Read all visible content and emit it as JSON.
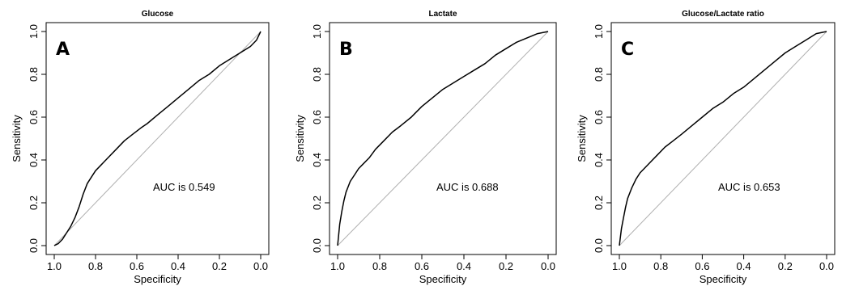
{
  "chart_data": [
    {
      "type": "line",
      "panel": "A",
      "title": "Glucose",
      "xlabel": "Specificity",
      "ylabel": "Sensitivity",
      "xlim": [
        1.0,
        0.0
      ],
      "ylim": [
        0.0,
        1.0
      ],
      "x_ticks": [
        "1.0",
        "0.8",
        "0.6",
        "0.4",
        "0.2",
        "0.0"
      ],
      "y_ticks": [
        "0.0",
        "0.2",
        "0.4",
        "0.6",
        "0.8",
        "1.0"
      ],
      "annotation": "AUC is 0.549",
      "reference_line": true,
      "series": [
        {
          "x": [
            1.0,
            0.98,
            0.96,
            0.94,
            0.92,
            0.9,
            0.88,
            0.86,
            0.84,
            0.82,
            0.8,
            0.77,
            0.74,
            0.7,
            0.66,
            0.62,
            0.58,
            0.55,
            0.5,
            0.45,
            0.4,
            0.35,
            0.3,
            0.25,
            0.2,
            0.15,
            0.1,
            0.05,
            0.02,
            0.0
          ],
          "y": [
            0.0,
            0.01,
            0.03,
            0.06,
            0.09,
            0.13,
            0.18,
            0.24,
            0.29,
            0.32,
            0.35,
            0.38,
            0.41,
            0.45,
            0.49,
            0.52,
            0.55,
            0.57,
            0.61,
            0.65,
            0.69,
            0.73,
            0.77,
            0.8,
            0.84,
            0.87,
            0.9,
            0.93,
            0.96,
            1.0
          ]
        }
      ]
    },
    {
      "type": "line",
      "panel": "B",
      "title": "Lactate",
      "xlabel": "Specificity",
      "ylabel": "Sensitivity",
      "xlim": [
        1.0,
        0.0
      ],
      "ylim": [
        0.0,
        1.0
      ],
      "x_ticks": [
        "1.0",
        "0.8",
        "0.6",
        "0.4",
        "0.2",
        "0.0"
      ],
      "y_ticks": [
        "0.0",
        "0.2",
        "0.4",
        "0.6",
        "0.8",
        "1.0"
      ],
      "annotation": "AUC is 0.688",
      "reference_line": true,
      "series": [
        {
          "x": [
            1.0,
            0.995,
            0.99,
            0.98,
            0.97,
            0.96,
            0.94,
            0.92,
            0.9,
            0.88,
            0.85,
            0.82,
            0.78,
            0.74,
            0.7,
            0.65,
            0.6,
            0.55,
            0.5,
            0.45,
            0.4,
            0.35,
            0.3,
            0.25,
            0.2,
            0.15,
            0.1,
            0.05,
            0.0
          ],
          "y": [
            0.0,
            0.05,
            0.1,
            0.16,
            0.21,
            0.25,
            0.3,
            0.33,
            0.36,
            0.38,
            0.41,
            0.45,
            0.49,
            0.53,
            0.56,
            0.6,
            0.65,
            0.69,
            0.73,
            0.76,
            0.79,
            0.82,
            0.85,
            0.89,
            0.92,
            0.95,
            0.97,
            0.99,
            1.0
          ]
        }
      ]
    },
    {
      "type": "line",
      "panel": "C",
      "title": "Glucose/Lactate ratio",
      "xlabel": "Specificity",
      "ylabel": "Sensitivity",
      "xlim": [
        1.0,
        0.0
      ],
      "ylim": [
        0.0,
        1.0
      ],
      "x_ticks": [
        "1.0",
        "0.8",
        "0.6",
        "0.4",
        "0.2",
        "0.0"
      ],
      "y_ticks": [
        "0.0",
        "0.2",
        "0.4",
        "0.6",
        "0.8",
        "1.0"
      ],
      "annotation": "AUC is 0.653",
      "reference_line": true,
      "series": [
        {
          "x": [
            1.0,
            0.995,
            0.99,
            0.98,
            0.97,
            0.96,
            0.94,
            0.92,
            0.9,
            0.88,
            0.85,
            0.82,
            0.78,
            0.74,
            0.7,
            0.65,
            0.6,
            0.55,
            0.5,
            0.45,
            0.4,
            0.35,
            0.3,
            0.25,
            0.2,
            0.15,
            0.1,
            0.05,
            0.0
          ],
          "y": [
            0.0,
            0.04,
            0.08,
            0.13,
            0.18,
            0.22,
            0.27,
            0.31,
            0.34,
            0.36,
            0.39,
            0.42,
            0.46,
            0.49,
            0.52,
            0.56,
            0.6,
            0.64,
            0.67,
            0.71,
            0.74,
            0.78,
            0.82,
            0.86,
            0.9,
            0.93,
            0.96,
            0.99,
            1.0
          ]
        }
      ]
    }
  ]
}
